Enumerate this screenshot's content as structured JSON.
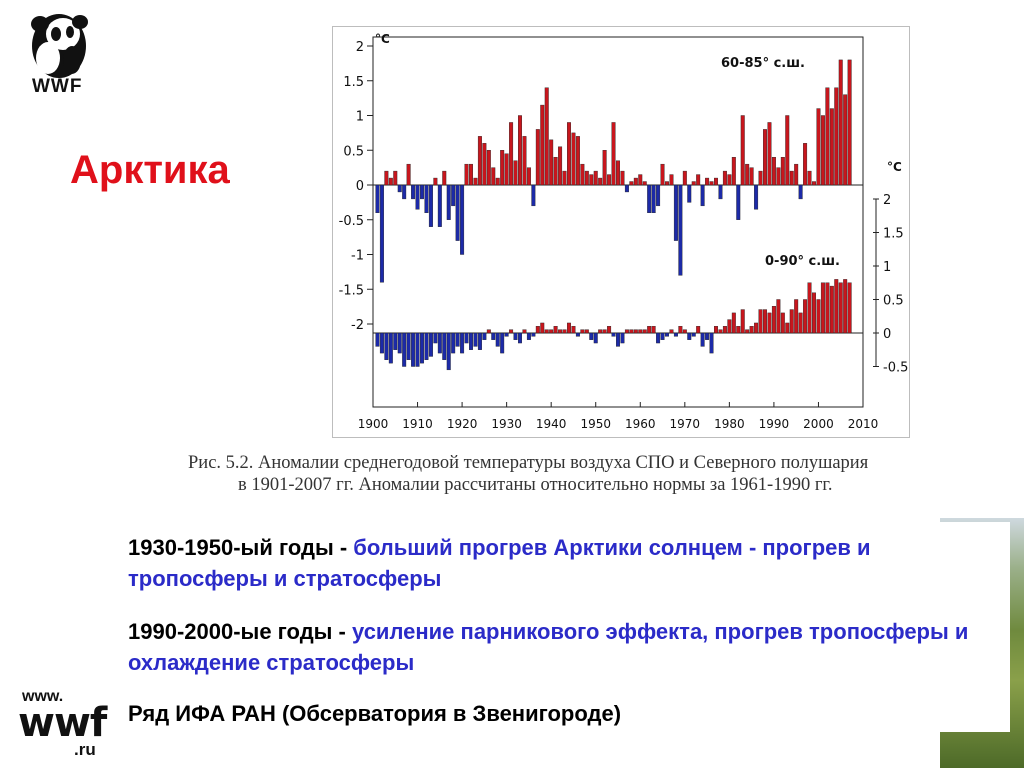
{
  "logo": {
    "text": "WWF"
  },
  "slide_title": "Арктика",
  "caption": {
    "line1": "Рис. 5.2. Аномалии среднегодовой температуры воздуха СПО и Северного полушария",
    "line2": "в 1901-2007 гг. Аномалии рассчитаны относительно нормы за 1961-1990 гг."
  },
  "paragraphs": [
    {
      "lead": "1930-1950-ый годы - ",
      "highlight": "больший прогрев Арктики солнцем - прогрев и тропосферы и стратосферы"
    },
    {
      "lead": "1990-2000-ые годы - ",
      "highlight": "усиление парникового эффекта, прогрев тропосферы и охлаждение стратосферы"
    },
    {
      "lead": "Ряд ИФА РАН (Обсерватория в Звенигороде)",
      "highlight": ""
    }
  ],
  "url_logo": {
    "top": "www.",
    "main": "wwf",
    "bottom": ".ru"
  },
  "colors": {
    "title": "#e0101a",
    "positive": "#c8161d",
    "negative": "#1c2aa8",
    "highlight_text": "#2b2bc8"
  },
  "chart_data": [
    {
      "type": "bar",
      "label": "60-85° с.ш.",
      "unit": "°C",
      "ylim": [
        -2,
        2
      ],
      "yticks": [
        2,
        1.5,
        1,
        0.5,
        0,
        -0.5,
        -1,
        -1.5,
        -2
      ],
      "x": [
        1901,
        1902,
        1903,
        1904,
        1905,
        1906,
        1907,
        1908,
        1909,
        1910,
        1911,
        1912,
        1913,
        1914,
        1915,
        1916,
        1917,
        1918,
        1919,
        1920,
        1921,
        1922,
        1923,
        1924,
        1925,
        1926,
        1927,
        1928,
        1929,
        1930,
        1931,
        1932,
        1933,
        1934,
        1935,
        1936,
        1937,
        1938,
        1939,
        1940,
        1941,
        1942,
        1943,
        1944,
        1945,
        1946,
        1947,
        1948,
        1949,
        1950,
        1951,
        1952,
        1953,
        1954,
        1955,
        1956,
        1957,
        1958,
        1959,
        1960,
        1961,
        1962,
        1963,
        1964,
        1965,
        1966,
        1967,
        1968,
        1969,
        1970,
        1971,
        1972,
        1973,
        1974,
        1975,
        1976,
        1977,
        1978,
        1979,
        1980,
        1981,
        1982,
        1983,
        1984,
        1985,
        1986,
        1987,
        1988,
        1989,
        1990,
        1991,
        1992,
        1993,
        1994,
        1995,
        1996,
        1997,
        1998,
        1999,
        2000,
        2001,
        2002,
        2003,
        2004,
        2005,
        2006,
        2007
      ],
      "values": [
        -0.4,
        -1.4,
        0.2,
        0.1,
        0.2,
        -0.1,
        -0.2,
        0.3,
        -0.2,
        -0.35,
        -0.2,
        -0.4,
        -0.6,
        0.1,
        -0.6,
        0.2,
        -0.5,
        -0.3,
        -0.8,
        -1.0,
        0.3,
        0.3,
        0.1,
        0.7,
        0.6,
        0.5,
        0.25,
        0.1,
        0.5,
        0.45,
        0.9,
        0.35,
        1.0,
        0.7,
        0.25,
        -0.3,
        0.8,
        1.15,
        1.4,
        0.65,
        0.4,
        0.55,
        0.2,
        0.9,
        0.75,
        0.7,
        0.3,
        0.2,
        0.15,
        0.2,
        0.1,
        0.5,
        0.15,
        0.9,
        0.35,
        0.2,
        -0.1,
        0.05,
        0.1,
        0.15,
        0.05,
        -0.4,
        -0.4,
        -0.3,
        0.3,
        0.05,
        0.15,
        -0.8,
        -1.3,
        0.2,
        -0.25,
        0.05,
        0.15,
        -0.3,
        0.1,
        0.05,
        0.1,
        -0.2,
        0.2,
        0.15,
        0.4,
        -0.5,
        1.0,
        0.3,
        0.25,
        -0.35,
        0.2,
        0.8,
        0.9,
        0.4,
        0.25,
        0.4,
        1.0,
        0.2,
        0.3,
        -0.2,
        0.6,
        0.2,
        0.05,
        1.1,
        1.0,
        1.4,
        1.1,
        1.4,
        1.8,
        1.3,
        1.8
      ]
    },
    {
      "type": "bar",
      "label": "0-90° с.ш.",
      "unit": "°C",
      "ylim": [
        -0.5,
        2
      ],
      "yticks": [
        2,
        1.5,
        1,
        0.5,
        0,
        -0.5
      ],
      "x": [
        1901,
        1902,
        1903,
        1904,
        1905,
        1906,
        1907,
        1908,
        1909,
        1910,
        1911,
        1912,
        1913,
        1914,
        1915,
        1916,
        1917,
        1918,
        1919,
        1920,
        1921,
        1922,
        1923,
        1924,
        1925,
        1926,
        1927,
        1928,
        1929,
        1930,
        1931,
        1932,
        1933,
        1934,
        1935,
        1936,
        1937,
        1938,
        1939,
        1940,
        1941,
        1942,
        1943,
        1944,
        1945,
        1946,
        1947,
        1948,
        1949,
        1950,
        1951,
        1952,
        1953,
        1954,
        1955,
        1956,
        1957,
        1958,
        1959,
        1960,
        1961,
        1962,
        1963,
        1964,
        1965,
        1966,
        1967,
        1968,
        1969,
        1970,
        1971,
        1972,
        1973,
        1974,
        1975,
        1976,
        1977,
        1978,
        1979,
        1980,
        1981,
        1982,
        1983,
        1984,
        1985,
        1986,
        1987,
        1988,
        1989,
        1990,
        1991,
        1992,
        1993,
        1994,
        1995,
        1996,
        1997,
        1998,
        1999,
        2000,
        2001,
        2002,
        2003,
        2004,
        2005,
        2006,
        2007
      ],
      "values": [
        -0.2,
        -0.3,
        -0.4,
        -0.45,
        -0.25,
        -0.3,
        -0.5,
        -0.4,
        -0.5,
        -0.5,
        -0.45,
        -0.4,
        -0.35,
        -0.15,
        -0.3,
        -0.4,
        -0.55,
        -0.3,
        -0.2,
        -0.3,
        -0.15,
        -0.25,
        -0.2,
        -0.25,
        -0.1,
        0.05,
        -0.1,
        -0.2,
        -0.3,
        -0.05,
        0.05,
        -0.1,
        -0.15,
        0.05,
        -0.1,
        -0.05,
        0.1,
        0.15,
        0.05,
        0.05,
        0.1,
        0.05,
        0.05,
        0.15,
        0.1,
        -0.05,
        0.05,
        0.05,
        -0.1,
        -0.15,
        0.05,
        0.05,
        0.1,
        -0.05,
        -0.2,
        -0.15,
        0.05,
        0.05,
        0.05,
        0.05,
        0.05,
        0.1,
        0.1,
        -0.15,
        -0.1,
        -0.05,
        0.05,
        -0.05,
        0.1,
        0.05,
        -0.1,
        -0.05,
        0.1,
        -0.2,
        -0.1,
        -0.3,
        0.1,
        0.05,
        0.1,
        0.2,
        0.3,
        0.1,
        0.35,
        0.05,
        0.1,
        0.15,
        0.35,
        0.35,
        0.3,
        0.4,
        0.5,
        0.3,
        0.15,
        0.35,
        0.5,
        0.3,
        0.5,
        0.75,
        0.6,
        0.5,
        0.75,
        0.75,
        0.7,
        0.8,
        0.75,
        0.8,
        0.75
      ]
    }
  ],
  "x_axis": {
    "ticks": [
      "1900",
      "1910",
      "1920",
      "1930",
      "1940",
      "1950",
      "1960",
      "1970",
      "1980",
      "1990",
      "2000",
      "2010"
    ]
  }
}
